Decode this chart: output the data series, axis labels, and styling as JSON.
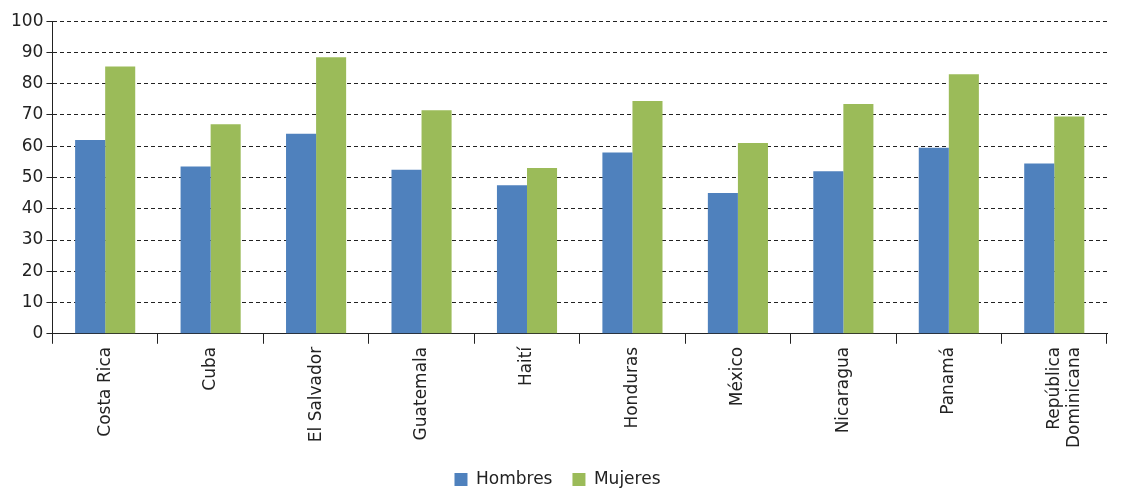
{
  "chart_data": {
    "type": "bar",
    "categories": [
      "Costa Rica",
      "Cuba",
      "El Salvador",
      "Guatemala",
      "Haití",
      "Honduras",
      "México",
      "Nicaragua",
      "Panamá",
      "República Dominicana"
    ],
    "series": [
      {
        "name": "Hombres",
        "color": "#4f81bd",
        "values": [
          62,
          53.5,
          64,
          52.5,
          47.5,
          58,
          45,
          52,
          59.5,
          54.5
        ]
      },
      {
        "name": "Mujeres",
        "color": "#9bbb59",
        "values": [
          85.5,
          67,
          88.5,
          71.5,
          53,
          74.5,
          61,
          73.5,
          83,
          69.5
        ]
      }
    ],
    "ylim": [
      0,
      100
    ],
    "yticks": [
      0,
      10,
      20,
      30,
      40,
      50,
      60,
      70,
      80,
      90,
      100
    ],
    "grid": "y",
    "legend": "bottom"
  }
}
